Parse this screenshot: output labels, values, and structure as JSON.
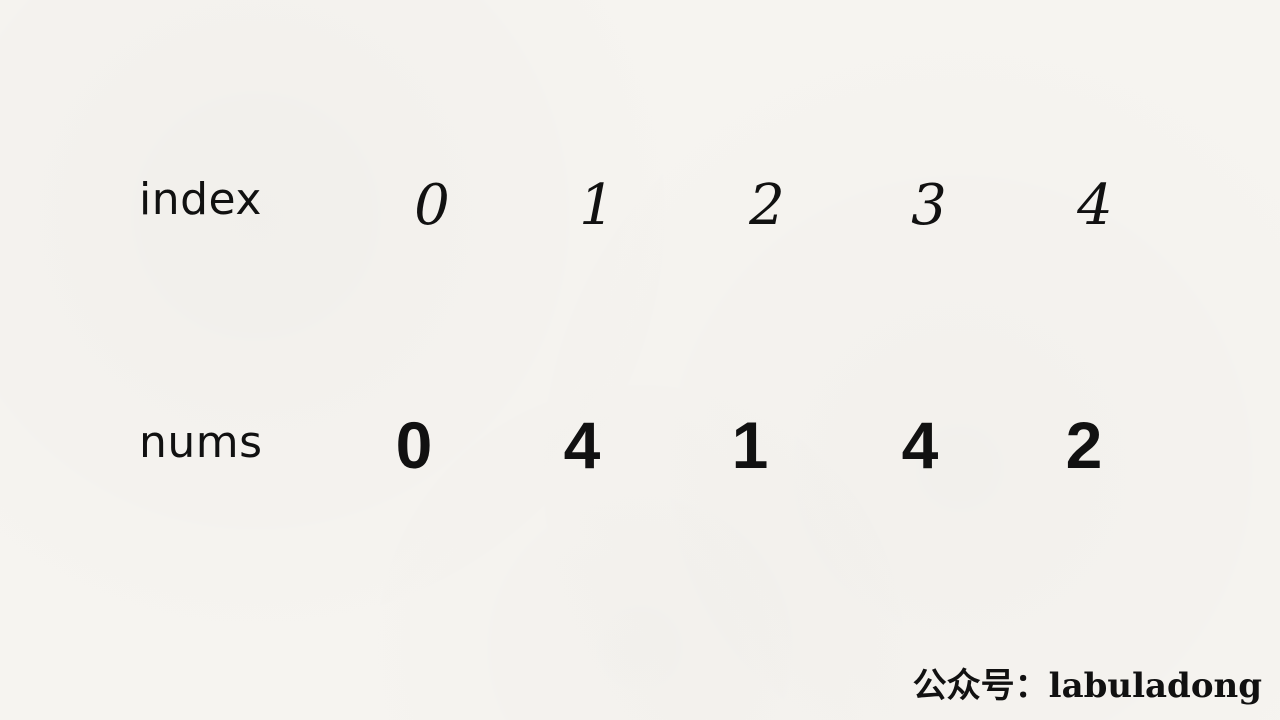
{
  "rows": {
    "index_label": "index",
    "nums_label": "nums"
  },
  "index": [
    "0",
    "1",
    "2",
    "3",
    "4"
  ],
  "nums": [
    "0",
    "4",
    "1",
    "4",
    "2"
  ],
  "watermark": {
    "prefix": "公众号：",
    "name": "labuladong"
  }
}
